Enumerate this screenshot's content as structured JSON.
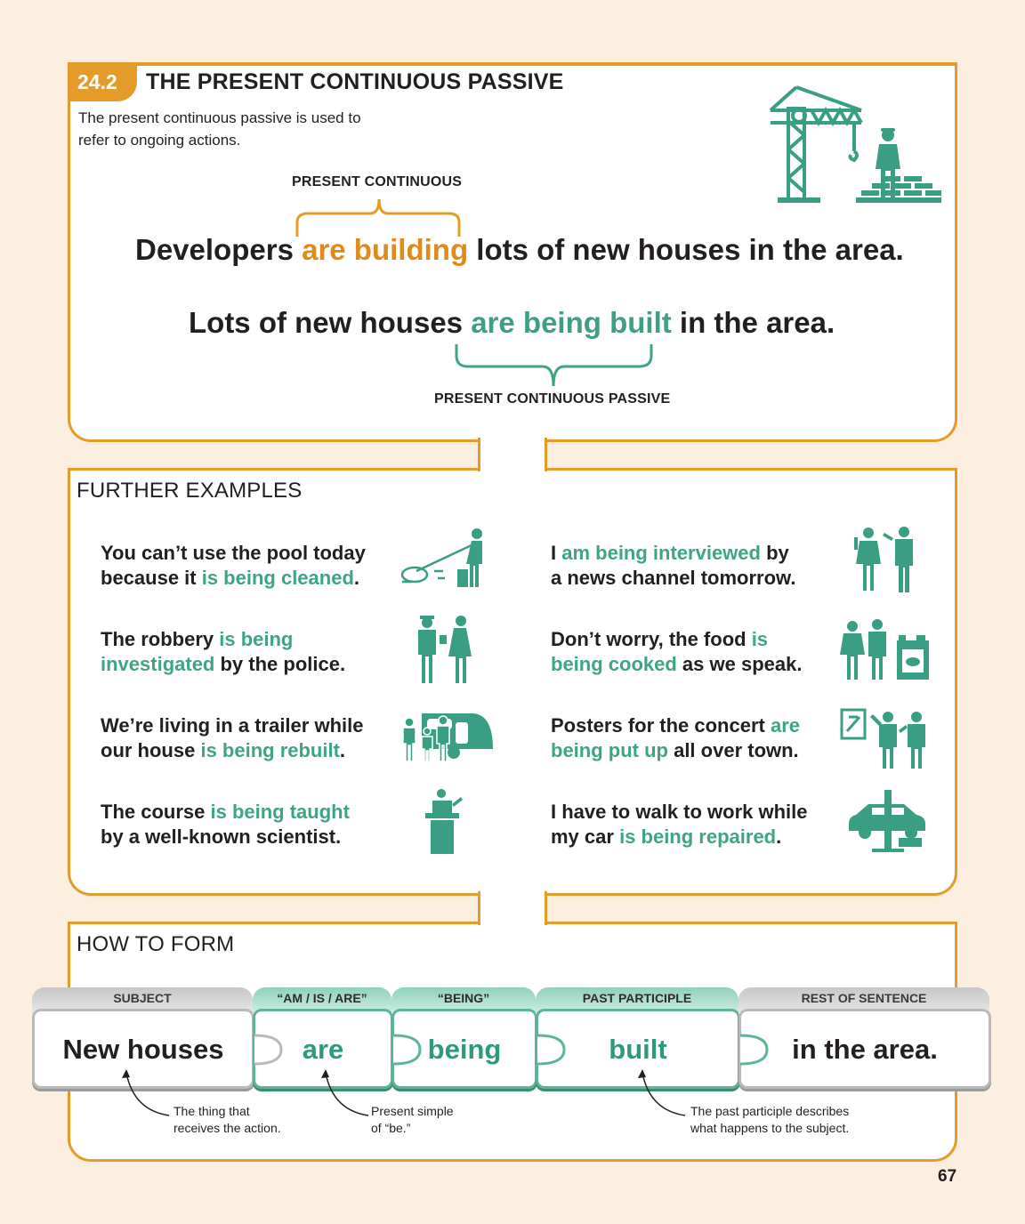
{
  "section": {
    "number": "24.2",
    "title": "THE PRESENT CONTINUOUS PASSIVE",
    "intro": "The present continuous passive is used to refer to ongoing actions."
  },
  "examples_top": {
    "active_label": "PRESENT CONTINUOUS",
    "active": {
      "pre": "Developers ",
      "highlight": "are building",
      "post": " lots of new houses in the area."
    },
    "passive": {
      "pre": "Lots of new houses ",
      "highlight": "are being built",
      "post": " in the area."
    },
    "passive_label": "PRESENT CONTINUOUS PASSIVE"
  },
  "further": {
    "heading": "FURTHER EXAMPLES",
    "items": [
      {
        "l1a": "You can’t use the pool today",
        "l2a": "because it ",
        "l2h": "is being cleaned",
        "l2b": "."
      },
      {
        "l1a": "The robbery ",
        "l1h": "is being",
        "l2h": "investigated",
        "l2b": " by the police."
      },
      {
        "l1a": "We’re living in a trailer while",
        "l2a": "our house ",
        "l2h": "is being rebuilt",
        "l2b": "."
      },
      {
        "l1a": "The course ",
        "l1h": "is being taught",
        "l2a": "by a well-known scientist."
      },
      {
        "l1a": "I ",
        "l1h": "am being interviewed",
        "l1b": " by",
        "l2a": "a news channel tomorrow."
      },
      {
        "l1a": "Don’t worry, the food ",
        "l1h": "is",
        "l2h": "being cooked",
        "l2b": " as we speak."
      },
      {
        "l1a": "Posters for the concert ",
        "l1h": "are",
        "l2h": "being put up",
        "l2b": " all over town."
      },
      {
        "l1a": "I have to walk to work while",
        "l2a": "my car ",
        "l2h": "is being repaired",
        "l2b": "."
      }
    ]
  },
  "how_to_form": {
    "heading": "HOW TO FORM",
    "pieces": [
      {
        "tab": "SUBJECT",
        "word": "New houses"
      },
      {
        "tab": "“AM / IS / ARE”",
        "word": "are"
      },
      {
        "tab": "“BEING”",
        "word": "being"
      },
      {
        "tab": "PAST PARTICIPLE",
        "word": "built"
      },
      {
        "tab": "REST OF SENTENCE",
        "word": "in the area."
      }
    ],
    "notes": {
      "subject_l1": "The thing that",
      "subject_l2": "receives the action.",
      "be_l1": "Present simple",
      "be_l2": "of “be.”",
      "participle_l1": "The past participle describes",
      "participle_l2": "what happens to the subject."
    }
  },
  "page_number": "67",
  "colors": {
    "orange": "#e59b2a",
    "teal": "#3fa487",
    "background": "#fcefdf"
  }
}
